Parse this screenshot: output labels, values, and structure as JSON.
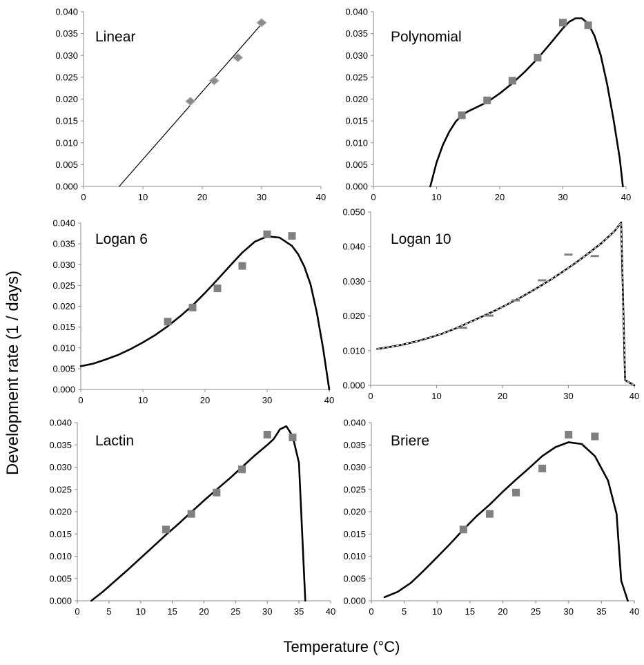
{
  "figure": {
    "ylabel": "Development rate (1 / days)",
    "xlabel": "Temperature (°C)"
  },
  "chart_data": [
    {
      "type": "scatter",
      "title": "Linear",
      "xlim": [
        0,
        40
      ],
      "ylim": [
        0,
        0.04
      ],
      "xticks": [
        "0",
        "10",
        "20",
        "30",
        "40"
      ],
      "yticks": [
        "0.000",
        "0.005",
        "0.010",
        "0.015",
        "0.020",
        "0.025",
        "0.030",
        "0.035",
        "0.040"
      ],
      "marker": "diamond",
      "marker_color": "#8c8c8c",
      "points": [
        [
          18,
          0.0195
        ],
        [
          22,
          0.0242
        ],
        [
          26,
          0.0295
        ],
        [
          30,
          0.0375
        ]
      ],
      "curve": [
        [
          6,
          0.0
        ],
        [
          30.2,
          0.0375
        ]
      ]
    },
    {
      "type": "scatter",
      "title": "Polynomial",
      "xlim": [
        0,
        40
      ],
      "ylim": [
        0,
        0.04
      ],
      "xticks": [
        "0",
        "10",
        "20",
        "30",
        "40"
      ],
      "yticks": [
        "0.000",
        "0.005",
        "0.010",
        "0.015",
        "0.020",
        "0.025",
        "0.030",
        "0.035",
        "0.040"
      ],
      "marker": "square",
      "marker_color": "#808080",
      "points": [
        [
          14,
          0.0163
        ],
        [
          18,
          0.0197
        ],
        [
          22,
          0.0242
        ],
        [
          26,
          0.0295
        ],
        [
          30,
          0.0375
        ],
        [
          34,
          0.0369
        ]
      ],
      "curve": [
        [
          9,
          0.0
        ],
        [
          10,
          0.0055
        ],
        [
          11,
          0.0095
        ],
        [
          12,
          0.0125
        ],
        [
          13,
          0.0148
        ],
        [
          14,
          0.0163
        ],
        [
          15,
          0.0172
        ],
        [
          16,
          0.0179
        ],
        [
          18,
          0.0193
        ],
        [
          20,
          0.0213
        ],
        [
          22,
          0.0236
        ],
        [
          24,
          0.0263
        ],
        [
          26,
          0.0293
        ],
        [
          28,
          0.0327
        ],
        [
          30,
          0.0362
        ],
        [
          31,
          0.0377
        ],
        [
          32,
          0.0385
        ],
        [
          33,
          0.0385
        ],
        [
          34,
          0.0373
        ],
        [
          35,
          0.0345
        ],
        [
          36,
          0.03
        ],
        [
          37,
          0.0235
        ],
        [
          38,
          0.0155
        ],
        [
          39,
          0.0065
        ],
        [
          39.5,
          0.0
        ]
      ]
    },
    {
      "type": "scatter",
      "title": "Logan 6",
      "xlim": [
        0,
        40
      ],
      "ylim": [
        0,
        0.04
      ],
      "xticks": [
        "0",
        "10",
        "20",
        "30",
        "40"
      ],
      "yticks": [
        "0.000",
        "0.005",
        "0.010",
        "0.015",
        "0.020",
        "0.025",
        "0.030",
        "0.035",
        "0.040"
      ],
      "marker": "square",
      "marker_color": "#808080",
      "points": [
        [
          14,
          0.0163
        ],
        [
          18,
          0.0197
        ],
        [
          22,
          0.0243
        ],
        [
          26,
          0.0297
        ],
        [
          30,
          0.0373
        ],
        [
          34,
          0.0369
        ]
      ],
      "curve": [
        [
          0,
          0.0056
        ],
        [
          2,
          0.0062
        ],
        [
          4,
          0.0072
        ],
        [
          6,
          0.0083
        ],
        [
          8,
          0.0097
        ],
        [
          10,
          0.0113
        ],
        [
          12,
          0.0131
        ],
        [
          14,
          0.0152
        ],
        [
          16,
          0.0176
        ],
        [
          18,
          0.0202
        ],
        [
          20,
          0.0232
        ],
        [
          22,
          0.0264
        ],
        [
          24,
          0.0297
        ],
        [
          26,
          0.0329
        ],
        [
          28,
          0.0355
        ],
        [
          30,
          0.0368
        ],
        [
          32,
          0.0365
        ],
        [
          34,
          0.0345
        ],
        [
          35,
          0.0325
        ],
        [
          36,
          0.0295
        ],
        [
          37,
          0.0252
        ],
        [
          38,
          0.0185
        ],
        [
          39,
          0.01
        ],
        [
          40,
          0.0
        ]
      ]
    },
    {
      "type": "scatter",
      "title": "Logan 10",
      "xlim": [
        0,
        40
      ],
      "ylim": [
        0,
        0.05
      ],
      "xticks": [
        "0",
        "10",
        "20",
        "30",
        "40"
      ],
      "yticks": [
        "0.000",
        "0.010",
        "0.020",
        "0.030",
        "0.040",
        "0.050"
      ],
      "marker": "dash",
      "marker_color": "#808080",
      "points": [
        [
          14,
          0.0166
        ],
        [
          18,
          0.0201
        ],
        [
          22,
          0.0245
        ],
        [
          26,
          0.0303
        ],
        [
          30,
          0.0377
        ],
        [
          34,
          0.0373
        ]
      ],
      "curve": [
        [
          1,
          0.0105
        ],
        [
          3,
          0.0111
        ],
        [
          5,
          0.0118
        ],
        [
          7,
          0.0127
        ],
        [
          9,
          0.0138
        ],
        [
          11,
          0.015
        ],
        [
          13,
          0.0165
        ],
        [
          15,
          0.0182
        ],
        [
          17,
          0.0199
        ],
        [
          19,
          0.0217
        ],
        [
          21,
          0.0236
        ],
        [
          23,
          0.0256
        ],
        [
          25,
          0.0278
        ],
        [
          27,
          0.0301
        ],
        [
          29,
          0.0326
        ],
        [
          31,
          0.0352
        ],
        [
          33,
          0.038
        ],
        [
          35,
          0.041
        ],
        [
          37,
          0.0445
        ],
        [
          38,
          0.047
        ],
        [
          38.6,
          0.0015
        ],
        [
          40,
          0.0
        ]
      ],
      "curve_style": "dashed"
    },
    {
      "type": "scatter",
      "title": "Lactin",
      "xlim": [
        0,
        40
      ],
      "ylim": [
        0,
        0.04
      ],
      "xticks": [
        "0",
        "5",
        "10",
        "15",
        "20",
        "25",
        "30",
        "35",
        "40"
      ],
      "yticks": [
        "0.000",
        "0.005",
        "0.010",
        "0.015",
        "0.020",
        "0.025",
        "0.030",
        "0.035",
        "0.040"
      ],
      "marker": "square",
      "marker_color": "#808080",
      "points": [
        [
          14,
          0.016
        ],
        [
          18,
          0.0195
        ],
        [
          22,
          0.0243
        ],
        [
          26,
          0.0295
        ],
        [
          30,
          0.0373
        ],
        [
          34,
          0.0367
        ]
      ],
      "curve": [
        [
          2.2,
          0.0
        ],
        [
          4,
          0.002
        ],
        [
          6,
          0.0045
        ],
        [
          8,
          0.007
        ],
        [
          10,
          0.0096
        ],
        [
          12,
          0.0122
        ],
        [
          14,
          0.0148
        ],
        [
          16,
          0.0173
        ],
        [
          18,
          0.0199
        ],
        [
          20,
          0.0225
        ],
        [
          22,
          0.025
        ],
        [
          24,
          0.0274
        ],
        [
          26,
          0.03
        ],
        [
          28,
          0.0326
        ],
        [
          30,
          0.035
        ],
        [
          31,
          0.0363
        ],
        [
          32,
          0.0385
        ],
        [
          33,
          0.0392
        ],
        [
          34,
          0.037
        ],
        [
          35,
          0.031
        ],
        [
          35.8,
          0.006
        ],
        [
          36,
          0.0
        ]
      ]
    },
    {
      "type": "scatter",
      "title": "Briere",
      "xlim": [
        0,
        40
      ],
      "ylim": [
        0,
        0.04
      ],
      "xticks": [
        "0",
        "5",
        "10",
        "15",
        "20",
        "25",
        "30",
        "35",
        "40"
      ],
      "yticks": [
        "0.000",
        "0.005",
        "0.010",
        "0.015",
        "0.020",
        "0.025",
        "0.030",
        "0.035",
        "0.040"
      ],
      "marker": "square",
      "marker_color": "#808080",
      "points": [
        [
          14,
          0.016
        ],
        [
          18,
          0.0195
        ],
        [
          22,
          0.0243
        ],
        [
          26,
          0.0297
        ],
        [
          30,
          0.0373
        ],
        [
          34,
          0.0369
        ]
      ],
      "curve": [
        [
          2,
          0.0008
        ],
        [
          4,
          0.002
        ],
        [
          6,
          0.004
        ],
        [
          8,
          0.0068
        ],
        [
          10,
          0.0098
        ],
        [
          12,
          0.0128
        ],
        [
          14,
          0.016
        ],
        [
          16,
          0.019
        ],
        [
          18,
          0.0216
        ],
        [
          20,
          0.0245
        ],
        [
          22,
          0.0272
        ],
        [
          24,
          0.0298
        ],
        [
          26,
          0.0325
        ],
        [
          28,
          0.0345
        ],
        [
          30,
          0.0356
        ],
        [
          32,
          0.0352
        ],
        [
          34,
          0.0325
        ],
        [
          36,
          0.027
        ],
        [
          37.3,
          0.0195
        ],
        [
          38,
          0.0045
        ],
        [
          39,
          0.0
        ]
      ]
    }
  ]
}
